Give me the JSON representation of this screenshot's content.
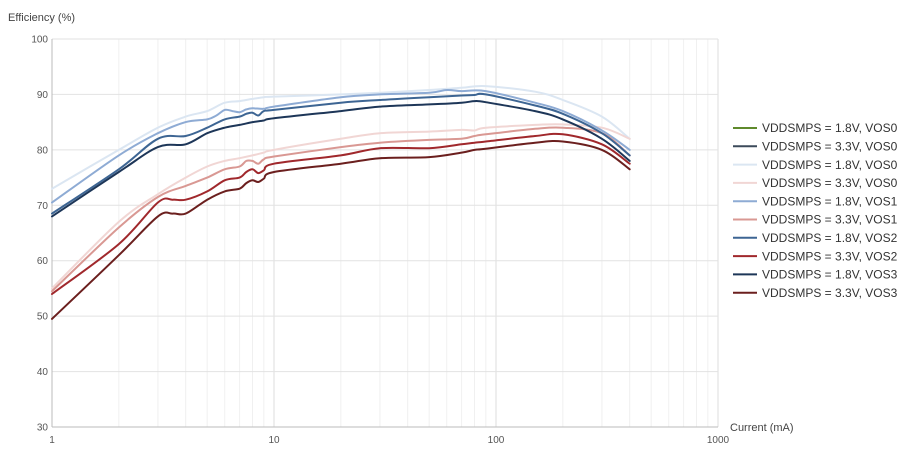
{
  "chart_data": {
    "type": "line",
    "title": "",
    "ylabel": "Efficiency (%)",
    "xlabel": "Current (mA)",
    "xscale": "log",
    "xlim": [
      1,
      1000
    ],
    "ylim": [
      30,
      100
    ],
    "xticks": [
      1,
      10,
      100,
      1000
    ],
    "xtick_labels": [
      "1",
      "10",
      "100",
      "1000"
    ],
    "yticks": [
      30,
      40,
      50,
      60,
      70,
      80,
      90,
      100
    ],
    "ytick_labels": [
      "30",
      "40",
      "50",
      "60",
      "70",
      "80",
      "90",
      "100"
    ],
    "grid": true,
    "legend_position": "right",
    "series": [
      {
        "name": "VDDSMPS = 1.8V, VOS0",
        "color": "#5f8a2c",
        "x": [],
        "y": []
      },
      {
        "name": "VDDSMPS = 3.3V, VOS0",
        "color": "#3c4a5a",
        "x": [],
        "y": []
      },
      {
        "name": "VDDSMPS = 1.8V, VOS0",
        "color": "#dbe6f2",
        "x": [
          1,
          2,
          3,
          4,
          5,
          6,
          7,
          8,
          9,
          10,
          20,
          30,
          50,
          70,
          90,
          150,
          200,
          300,
          400
        ],
        "y": [
          73,
          80,
          84,
          86,
          87,
          88.5,
          88.8,
          89.2,
          89.5,
          89.6,
          90.0,
          90.3,
          90.8,
          91.2,
          91.5,
          90.5,
          89.0,
          86.0,
          82.0
        ]
      },
      {
        "name": "VDDSMPS = 3.3V, VOS0",
        "color": "#f1d6d4",
        "x": [
          1,
          2,
          3,
          4,
          5,
          6,
          7,
          8,
          9,
          10,
          20,
          30,
          50,
          70,
          80,
          90,
          150,
          200,
          300,
          400
        ],
        "y": [
          55,
          67,
          72,
          75,
          77,
          78,
          78.5,
          79,
          79.5,
          80,
          82,
          83,
          83.3,
          83.6,
          83.5,
          84,
          84.5,
          84.6,
          84,
          82
        ]
      },
      {
        "name": "VDDSMPS = 1.8V, VOS1",
        "color": "#8eabd4",
        "x": [
          1,
          2,
          3,
          4,
          5,
          5.5,
          6,
          6.5,
          7,
          7.5,
          8,
          9,
          10,
          20,
          30,
          50,
          60,
          70,
          90,
          150,
          200,
          300,
          400
        ],
        "y": [
          70.5,
          79,
          83,
          85,
          85.5,
          86.2,
          87.2,
          87.0,
          86.8,
          87.3,
          87.5,
          87.4,
          87.8,
          89.5,
          90.0,
          90.3,
          90.8,
          90.6,
          90.6,
          88.5,
          87.0,
          83.5,
          80.0
        ]
      },
      {
        "name": "VDDSMPS = 3.3V, VOS1",
        "color": "#d99893",
        "x": [
          1,
          2,
          3,
          4,
          5,
          6,
          7,
          7.5,
          8,
          8.5,
          9,
          10,
          20,
          30,
          50,
          70,
          80,
          90,
          150,
          200,
          300,
          400
        ],
        "y": [
          54.5,
          66,
          71.5,
          73.5,
          75,
          76.5,
          77,
          78,
          78,
          77.5,
          78.3,
          78.8,
          80.5,
          81.3,
          81.8,
          82.0,
          82.5,
          82.8,
          83.8,
          84.0,
          83.0,
          79.0
        ]
      },
      {
        "name": "VDDSMPS = 1.8V, VOS2",
        "color": "#3d6593",
        "x": [
          1,
          2,
          3,
          4,
          5,
          6,
          7,
          7.5,
          8,
          8.5,
          9,
          10,
          20,
          30,
          50,
          70,
          80,
          90,
          150,
          200,
          300,
          400
        ],
        "y": [
          68.5,
          76.5,
          82,
          82.5,
          84,
          85.5,
          86,
          86.5,
          86.7,
          86.2,
          87,
          87.2,
          88.5,
          89.0,
          89.5,
          89.8,
          89.9,
          90.0,
          88.0,
          86.5,
          83.0,
          79.0
        ]
      },
      {
        "name": "VDDSMPS = 3.3V, VOS2",
        "color": "#a0282c",
        "x": [
          1,
          2,
          3,
          3.5,
          4,
          5,
          6,
          7,
          7.5,
          8,
          8.5,
          9,
          10,
          20,
          30,
          50,
          70,
          80,
          90,
          150,
          200,
          300,
          400
        ],
        "y": [
          54,
          63,
          70.5,
          71,
          71,
          72.5,
          74.5,
          75,
          76,
          76.5,
          75.8,
          76.3,
          77.5,
          79,
          80.3,
          80.3,
          81,
          81.3,
          81.5,
          82.5,
          82.8,
          81,
          77.5
        ]
      },
      {
        "name": "VDDSMPS = 1.8V, VOS3",
        "color": "#1d3658",
        "x": [
          1,
          2,
          3,
          4,
          5,
          6,
          7,
          8,
          9,
          10,
          20,
          30,
          50,
          70,
          80,
          90,
          150,
          200,
          300,
          400
        ],
        "y": [
          68,
          76,
          80.5,
          81,
          83,
          84,
          84.5,
          85,
          85.3,
          85.7,
          87,
          87.8,
          88.2,
          88.5,
          88.8,
          88.6,
          87.0,
          85.5,
          82.0,
          78.0
        ]
      },
      {
        "name": "VDDSMPS = 3.3V, VOS3",
        "color": "#6b1f1e",
        "x": [
          1,
          2,
          3,
          3.5,
          4,
          5,
          6,
          7,
          7.5,
          8,
          8.5,
          9,
          10,
          20,
          30,
          50,
          70,
          80,
          90,
          150,
          200,
          300,
          400
        ],
        "y": [
          49.5,
          61,
          68,
          68.5,
          68.5,
          71,
          72.5,
          73,
          74,
          74.5,
          74.2,
          74.8,
          76,
          77.5,
          78.5,
          78.7,
          79.5,
          80.0,
          80.2,
          81.3,
          81.5,
          80.0,
          76.5
        ]
      }
    ]
  }
}
